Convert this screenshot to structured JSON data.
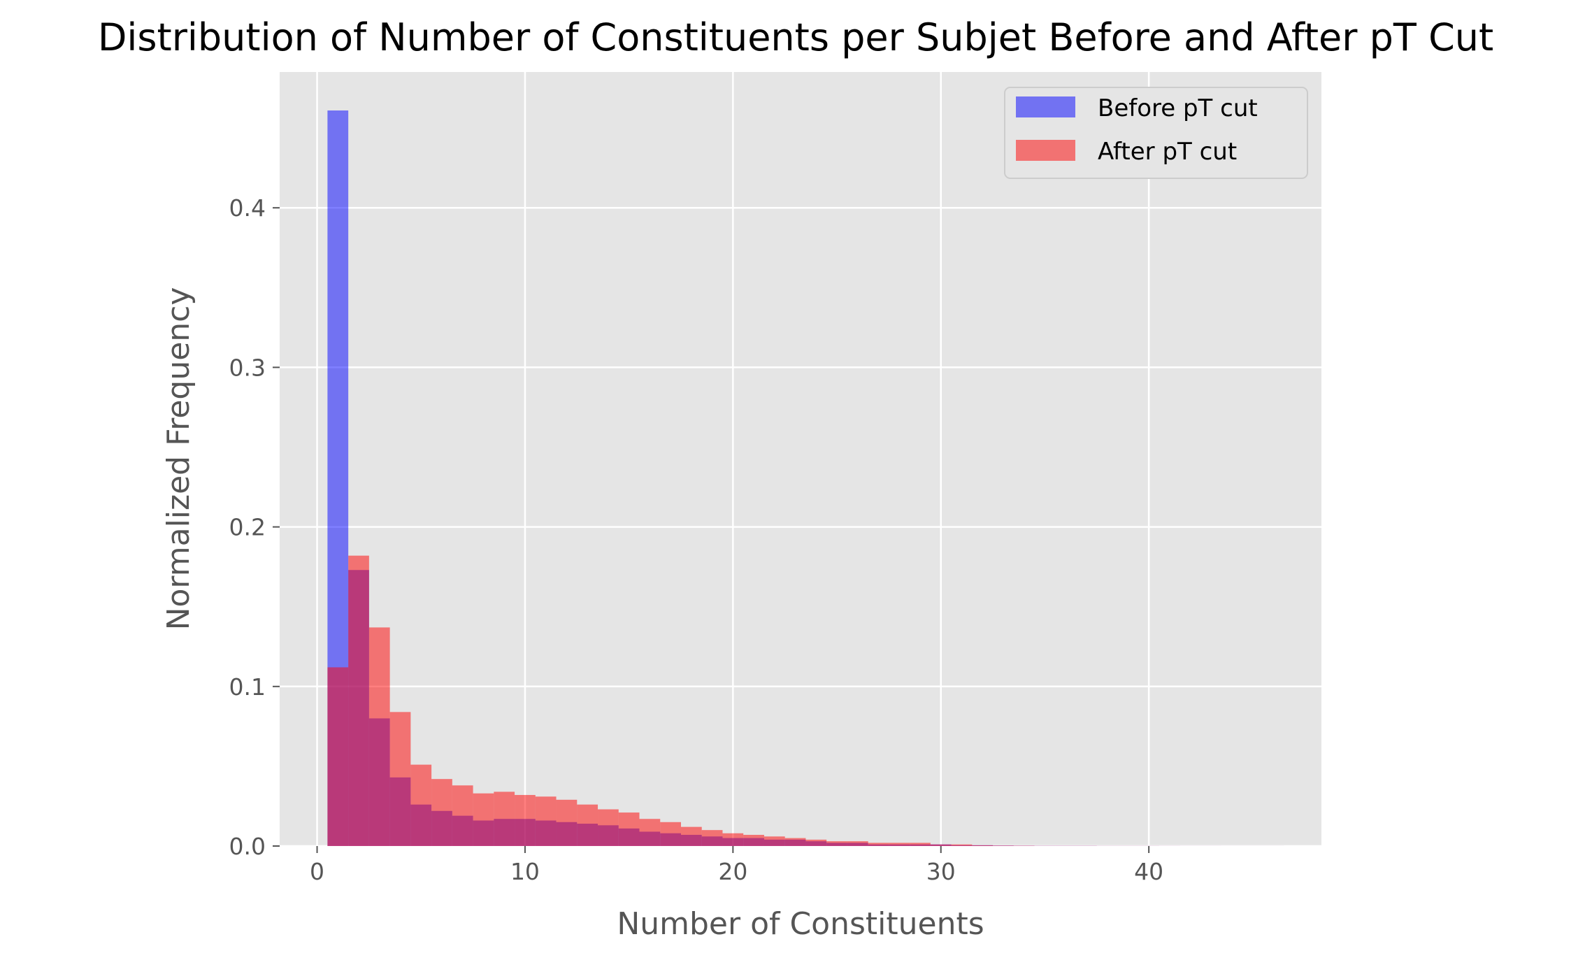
{
  "chart_data": {
    "type": "bar",
    "title": "Distribution of Number of Constituents per Subjet Before and After pT Cut",
    "xlabel": "Number of Constituents",
    "ylabel": "Normalized Frequency",
    "xlim": [
      -1.8,
      48.3
    ],
    "ylim": [
      0,
      0.4851
    ],
    "xticks": [
      0,
      10,
      20,
      30,
      40
    ],
    "yticks": [
      0.0,
      0.1,
      0.2,
      0.3,
      0.4
    ],
    "xtick_labels": [
      "0",
      "10",
      "20",
      "30",
      "40"
    ],
    "ytick_labels": [
      "0.0",
      "0.1",
      "0.2",
      "0.3",
      "0.4"
    ],
    "bin_edges_start": 0.5,
    "bin_width": 1,
    "grid": true,
    "legend_position": "upper right",
    "series": [
      {
        "name": "Before pT cut",
        "color": "#0000ff",
        "alpha": 0.5,
        "values": [
          0.461,
          0.173,
          0.08,
          0.043,
          0.026,
          0.022,
          0.019,
          0.016,
          0.017,
          0.017,
          0.016,
          0.015,
          0.014,
          0.013,
          0.011,
          0.009,
          0.008,
          0.007,
          0.006,
          0.005,
          0.005,
          0.004,
          0.004,
          0.003,
          0.002,
          0.002,
          0.001,
          0.001,
          0.001,
          0.001,
          0.0005,
          0.0005,
          0.0003,
          0.0002,
          0.0001,
          0.0001,
          0.0001,
          5e-05,
          5e-05,
          5e-05,
          3e-05,
          2e-05,
          2e-05,
          1e-05,
          1e-05,
          1e-05
        ]
      },
      {
        "name": "After pT cut",
        "color": "#ff0000",
        "alpha": 0.5,
        "values": [
          0.112,
          0.182,
          0.137,
          0.084,
          0.051,
          0.042,
          0.038,
          0.033,
          0.034,
          0.032,
          0.031,
          0.029,
          0.026,
          0.023,
          0.021,
          0.017,
          0.015,
          0.012,
          0.01,
          0.008,
          0.007,
          0.006,
          0.005,
          0.004,
          0.003,
          0.003,
          0.002,
          0.002,
          0.002,
          0.001,
          0.001,
          0.0005,
          0.0003,
          0.0002,
          0.0001,
          0.0001,
          0.0001,
          5e-05,
          5e-05,
          5e-05,
          3e-05,
          2e-05,
          2e-05,
          1e-05,
          1e-05,
          1e-05
        ]
      }
    ]
  }
}
